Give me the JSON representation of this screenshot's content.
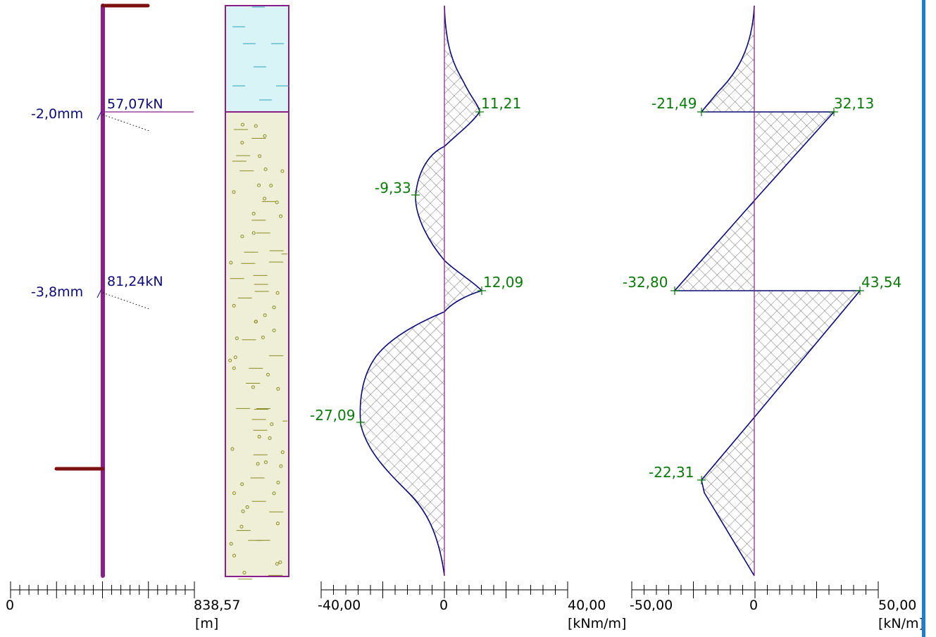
{
  "colors": {
    "pile": "#8a1f8a",
    "anchor": "#7a1010",
    "label_blue": "#0a0a78",
    "value_green": "#0a7a0a",
    "outline": "#0a0a78",
    "water": "#d8f4f6",
    "soil": "#efefd8",
    "accent_bar": "#1a7fd1"
  },
  "pile_panel": {
    "anchors": [
      {
        "displacement": "-2,0mm",
        "force": "57,07kN"
      },
      {
        "displacement": "-3,8mm",
        "force": "81,24kN"
      }
    ],
    "scale": {
      "min_label": "0",
      "max_label": "838,57",
      "unit": "[m]"
    }
  },
  "soil_panel": {
    "layers": [
      "water",
      "sand"
    ]
  },
  "moment_panel": {
    "unit": "[kNm/m]",
    "scale": {
      "min_label": "-40,00",
      "zero_label": "0",
      "max_label": "40,00"
    },
    "values": [
      {
        "label": "11,21",
        "value": 11.21,
        "side": "right"
      },
      {
        "label": "-9,33",
        "value": -9.33,
        "side": "left"
      },
      {
        "label": "12,09",
        "value": 12.09,
        "side": "right"
      },
      {
        "label": "-27,09",
        "value": -27.09,
        "side": "left"
      }
    ]
  },
  "shear_panel": {
    "unit": "[kN/m]",
    "scale": {
      "min_label": "-50,00",
      "zero_label": "0",
      "max_label": "50,00"
    },
    "values": [
      {
        "label": "-21,49",
        "value": -21.49,
        "side": "left"
      },
      {
        "label": "32,13",
        "value": 32.13,
        "side": "right"
      },
      {
        "label": "-32,80",
        "value": -32.8,
        "side": "left"
      },
      {
        "label": "43,54",
        "value": 43.54,
        "side": "right"
      },
      {
        "label": "-22,31",
        "value": -22.31,
        "side": "left"
      }
    ]
  }
}
